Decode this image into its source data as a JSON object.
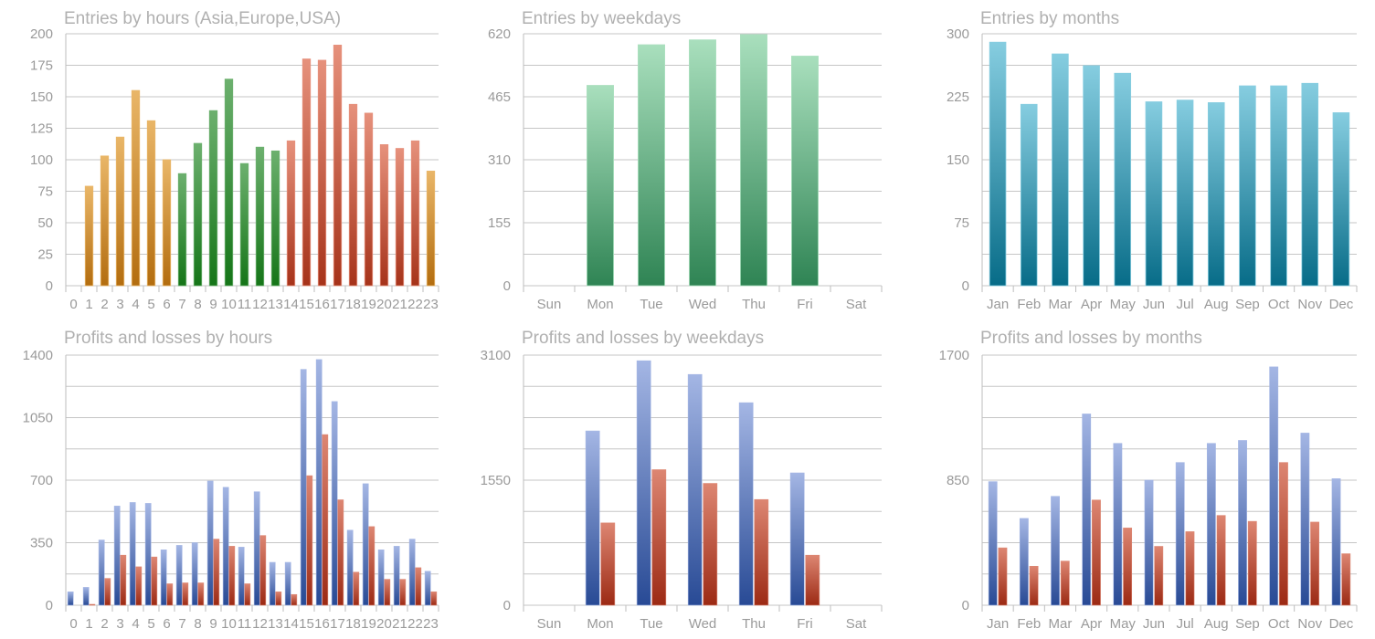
{
  "colors": {
    "asia_top": "#e9b668",
    "asia_bot": "#b36d0f",
    "europe_top": "#6cb06e",
    "europe_bot": "#157518",
    "usa_top": "#e6917c",
    "usa_bot": "#a6331a",
    "week_top": "#a9dfbd",
    "week_bot": "#2f8454",
    "month_top": "#86cde0",
    "month_bot": "#076c88",
    "profit_top": "#a4b6e4",
    "profit_bot": "#284a95",
    "loss_top": "#dd8672",
    "loss_bot": "#9c2a14",
    "grid": "#c6c6c6",
    "text": "#9a9a9a",
    "title": "#b0b0b0"
  },
  "chart_data": [
    {
      "id": "entries-hours",
      "type": "bar",
      "title": "Entries by hours (Asia,Europe,USA)",
      "categories": [
        "0",
        "1",
        "2",
        "3",
        "4",
        "5",
        "6",
        "7",
        "8",
        "9",
        "10",
        "11",
        "12",
        "13",
        "14",
        "15",
        "16",
        "17",
        "18",
        "19",
        "20",
        "21",
        "22",
        "23"
      ],
      "series": [
        {
          "name": "Entries",
          "values": [
            0,
            79,
            103,
            118,
            155,
            131,
            100,
            89,
            113,
            139,
            164,
            97,
            110,
            107,
            115,
            180,
            179,
            191,
            144,
            137,
            112,
            109,
            115,
            91
          ]
        }
      ],
      "bar_groups": [
        "asia",
        "asia",
        "asia",
        "asia",
        "asia",
        "asia",
        "asia",
        "europe",
        "europe",
        "europe",
        "europe",
        "europe",
        "europe",
        "europe",
        "usa",
        "usa",
        "usa",
        "usa",
        "usa",
        "usa",
        "usa",
        "usa",
        "usa",
        "asia"
      ],
      "yticks": [
        "0",
        "25",
        "50",
        "75",
        "100",
        "125",
        "150",
        "175",
        "200"
      ],
      "ylim": [
        0,
        200
      ],
      "grid_lines": 8
    },
    {
      "id": "entries-weekdays",
      "type": "bar",
      "title": "Entries by weekdays",
      "categories": [
        "Sun",
        "Mon",
        "Tue",
        "Wed",
        "Thu",
        "Fri",
        "Sat"
      ],
      "series": [
        {
          "name": "Entries",
          "values": [
            0,
            493,
            593,
            605,
            618,
            565,
            0
          ]
        }
      ],
      "yticks": [
        "0",
        "155",
        "310",
        "465",
        "620"
      ],
      "ylim": [
        0,
        620
      ],
      "grid_lines": 8
    },
    {
      "id": "entries-months",
      "type": "bar",
      "title": "Entries by months",
      "categories": [
        "Jan",
        "Feb",
        "Mar",
        "Apr",
        "May",
        "Jun",
        "Jul",
        "Aug",
        "Sep",
        "Oct",
        "Nov",
        "Dec"
      ],
      "series": [
        {
          "name": "Entries",
          "values": [
            290,
            216,
            276,
            262,
            253,
            219,
            221,
            218,
            238,
            238,
            241,
            206
          ]
        }
      ],
      "yticks": [
        "0",
        "75",
        "150",
        "225",
        "300"
      ],
      "ylim": [
        0,
        300
      ],
      "grid_lines": 8
    },
    {
      "id": "pl-hours",
      "type": "bar",
      "title": "Profits and losses by hours",
      "categories": [
        "0",
        "1",
        "2",
        "3",
        "4",
        "5",
        "6",
        "7",
        "8",
        "9",
        "10",
        "11",
        "12",
        "13",
        "14",
        "15",
        "16",
        "17",
        "18",
        "19",
        "20",
        "21",
        "22",
        "23"
      ],
      "series": [
        {
          "name": "Profits",
          "values": [
            75,
            100,
            365,
            555,
            575,
            570,
            310,
            335,
            350,
            695,
            660,
            325,
            635,
            240,
            240,
            1320,
            1375,
            1140,
            420,
            680,
            310,
            330,
            370,
            190
          ]
        },
        {
          "name": "Losses",
          "values": [
            0,
            5,
            150,
            280,
            215,
            270,
            120,
            125,
            125,
            370,
            330,
            120,
            390,
            75,
            60,
            725,
            955,
            590,
            185,
            440,
            145,
            145,
            210,
            75
          ]
        }
      ],
      "yticks": [
        "0",
        "350",
        "700",
        "1050",
        "1400"
      ],
      "ylim": [
        0,
        1400
      ],
      "grid_lines": 8
    },
    {
      "id": "pl-weekdays",
      "type": "bar",
      "title": "Profits and losses by weekdays",
      "categories": [
        "Sun",
        "Mon",
        "Tue",
        "Wed",
        "Thu",
        "Fri",
        "Sat"
      ],
      "series": [
        {
          "name": "Profits",
          "values": [
            0,
            2160,
            3030,
            2860,
            2510,
            1640,
            0
          ]
        },
        {
          "name": "Losses",
          "values": [
            0,
            1020,
            1680,
            1510,
            1310,
            620,
            0
          ]
        }
      ],
      "yticks": [
        "0",
        "1550",
        "3100"
      ],
      "ylim": [
        0,
        3100
      ],
      "grid_lines": 8
    },
    {
      "id": "pl-months",
      "type": "bar",
      "title": "Profits and losses by months",
      "categories": [
        "Jan",
        "Feb",
        "Mar",
        "Apr",
        "May",
        "Jun",
        "Jul",
        "Aug",
        "Sep",
        "Oct",
        "Nov",
        "Dec"
      ],
      "series": [
        {
          "name": "Profits",
          "values": [
            840,
            590,
            740,
            1300,
            1100,
            850,
            970,
            1100,
            1120,
            1620,
            1170,
            860
          ]
        },
        {
          "name": "Losses",
          "values": [
            390,
            265,
            300,
            715,
            525,
            400,
            500,
            610,
            570,
            970,
            565,
            350
          ]
        }
      ],
      "yticks": [
        "0",
        "850",
        "1700"
      ],
      "ylim": [
        0,
        1700
      ],
      "grid_lines": 8
    }
  ]
}
